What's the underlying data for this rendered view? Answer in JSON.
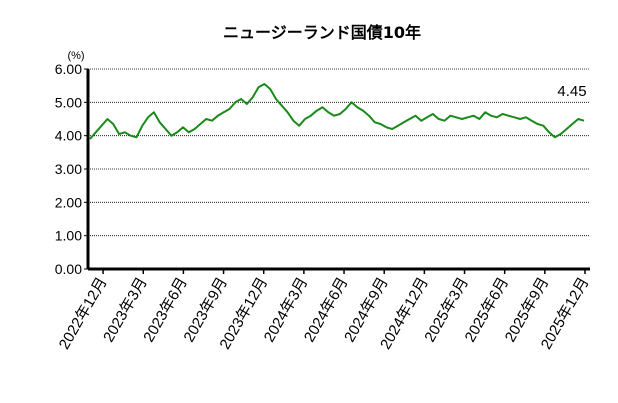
{
  "chart_data": {
    "type": "line",
    "title": "ニュージーランド国債10年",
    "ylabel": "(%)",
    "xlabel": "",
    "ylim": [
      0,
      6
    ],
    "yticks": [
      "0.00",
      "1.00",
      "2.00",
      "3.00",
      "4.00",
      "5.00",
      "6.00"
    ],
    "grid": true,
    "x_tick_labels": [
      "2022年12月",
      "2023年3月",
      "2023年6月",
      "2023年9月",
      "2023年12月",
      "2024年3月",
      "2024年6月",
      "2024年9月",
      "2024年12月",
      "2025年3月",
      "2025年6月",
      "2025年9月",
      "2025年12月"
    ],
    "last_value_label": "4.45",
    "series_color": "#1a8a1a",
    "series": [
      {
        "name": "",
        "values": [
          3.9,
          4.1,
          4.3,
          4.5,
          4.35,
          4.05,
          4.1,
          4.0,
          3.95,
          4.3,
          4.55,
          4.7,
          4.4,
          4.2,
          4.0,
          4.1,
          4.25,
          4.1,
          4.2,
          4.35,
          4.5,
          4.45,
          4.6,
          4.7,
          4.8,
          5.0,
          5.1,
          4.95,
          5.15,
          5.45,
          5.55,
          5.4,
          5.1,
          4.9,
          4.7,
          4.45,
          4.3,
          4.5,
          4.6,
          4.75,
          4.85,
          4.7,
          4.6,
          4.65,
          4.8,
          5.0,
          4.85,
          4.75,
          4.6,
          4.4,
          4.35,
          4.25,
          4.2,
          4.3,
          4.4,
          4.5,
          4.6,
          4.45,
          4.55,
          4.65,
          4.5,
          4.45,
          4.6,
          4.55,
          4.5,
          4.55,
          4.6,
          4.5,
          4.7,
          4.6,
          4.55,
          4.65,
          4.6,
          4.55,
          4.5,
          4.55,
          4.45,
          4.35,
          4.3,
          4.1,
          3.95,
          4.05,
          4.2,
          4.35,
          4.5,
          4.45
        ]
      }
    ]
  }
}
